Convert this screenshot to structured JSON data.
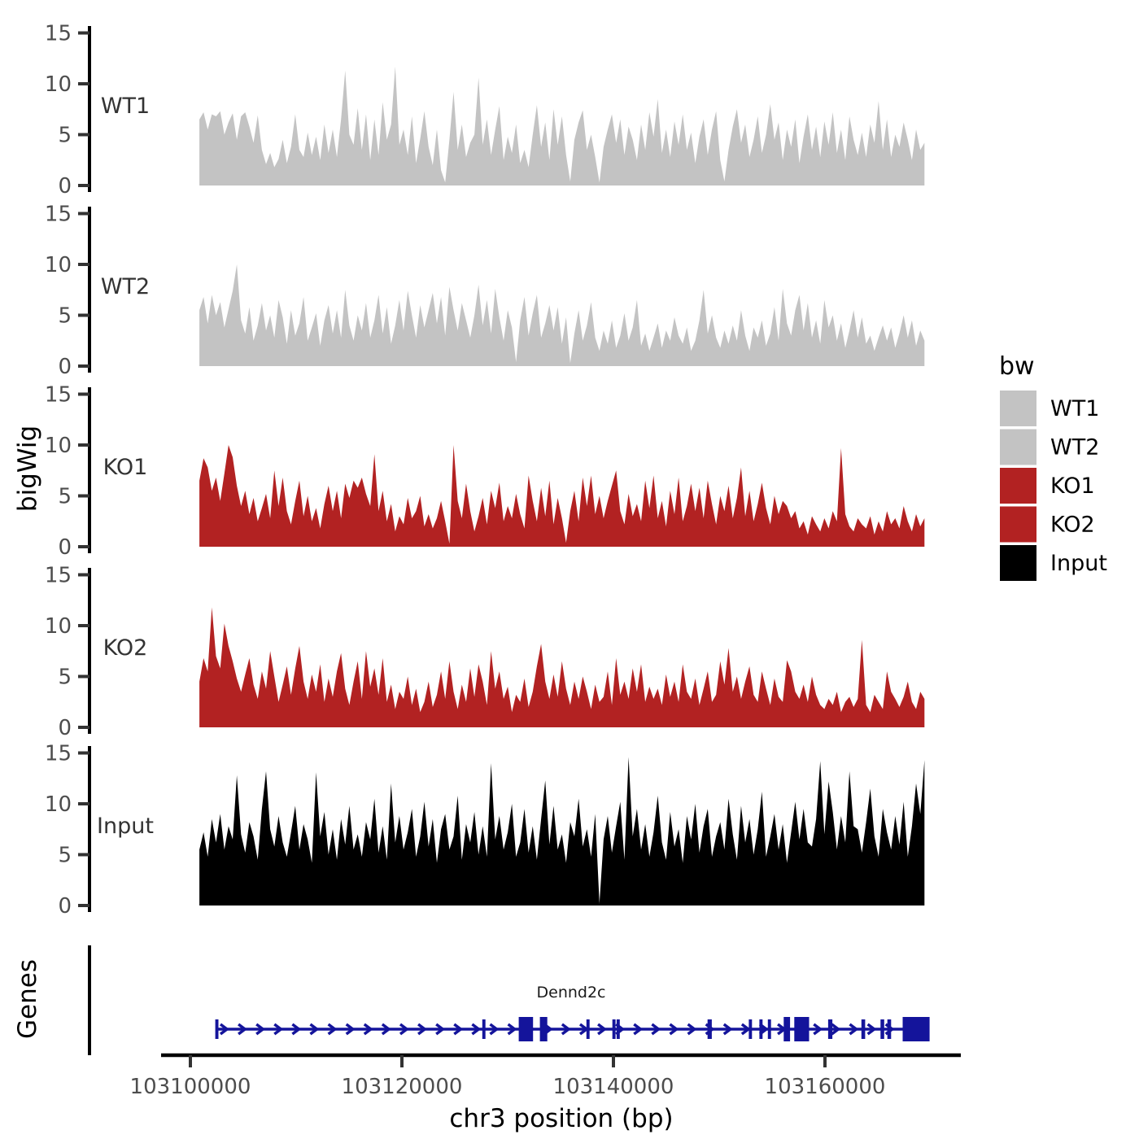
{
  "figure": {
    "background": "#FFFFFF",
    "y_axis_label": "bigWig",
    "genes_axis_label": "Genes",
    "x_axis": {
      "label": "chr3 position (bp)",
      "tick_values": [
        103100000,
        103120000,
        103140000,
        103160000
      ],
      "tick_labels": [
        "103100000",
        "103120000",
        "103140000",
        "103160000"
      ]
    },
    "legend": {
      "title": "bw",
      "entries": [
        {
          "label": "WT1",
          "color": "#C3C3C3"
        },
        {
          "label": "WT2",
          "color": "#C3C3C3"
        },
        {
          "label": "KO1",
          "color": "#B22222"
        },
        {
          "label": "KO2",
          "color": "#B22222"
        },
        {
          "label": "Input",
          "color": "#000000"
        }
      ]
    },
    "colors": {
      "axis": "#000000",
      "tick_text": "#4D4D4D",
      "gene": "#14149B"
    }
  },
  "chart_data": {
    "type": "area",
    "title": "",
    "xlabel": "chr3 position (bp)",
    "ylabel": "bigWig",
    "xlim": [
      103097200,
      103172850
    ],
    "ylim": [
      0,
      15
    ],
    "grid": false,
    "legend_position": "right",
    "y_ticks": [
      0,
      5,
      10,
      15
    ],
    "x_ticks": [
      103100000,
      103120000,
      103140000,
      103160000
    ],
    "x_start_bp": 103100850,
    "x_step_bp": 394,
    "series": [
      {
        "name": "WT1",
        "color": "#C3C3C3",
        "values": [
          6.5,
          7.2,
          5.5,
          7.0,
          6.8,
          7.3,
          5.0,
          6.2,
          7.1,
          4.5,
          6.8,
          7.2,
          5.8,
          4.2,
          6.9,
          3.5,
          2.1,
          3.2,
          1.8,
          2.6,
          4.5,
          2.2,
          3.8,
          7.0,
          3.5,
          2.8,
          5.2,
          3.0,
          4.8,
          2.5,
          6.0,
          3.2,
          5.5,
          2.8,
          6.5,
          11.3,
          5.0,
          4.0,
          7.6,
          3.5,
          7.0,
          2.5,
          6.5,
          3.0,
          8.2,
          4.5,
          6.0,
          11.7,
          4.0,
          5.5,
          3.0,
          6.8,
          2.2,
          4.6,
          7.3,
          3.8,
          2.0,
          5.5,
          1.5,
          0.3,
          4.5,
          9.2,
          3.5,
          6.0,
          2.8,
          4.2,
          5.0,
          10.6,
          4.0,
          6.5,
          3.0,
          5.5,
          7.8,
          2.5,
          4.8,
          3.2,
          6.0,
          2.2,
          3.5,
          1.8,
          5.0,
          7.9,
          3.8,
          6.2,
          2.5,
          7.5,
          4.0,
          6.8,
          3.0,
          0.4,
          4.5,
          6.2,
          7.4,
          3.5,
          5.0,
          2.8,
          0.3,
          3.8,
          5.5,
          7.0,
          4.2,
          6.5,
          3.0,
          5.8,
          4.5,
          2.5,
          6.0,
          3.5,
          7.2,
          4.8,
          8.5,
          3.2,
          5.5,
          2.8,
          6.3,
          4.0,
          7.0,
          3.5,
          5.2,
          2.2,
          4.8,
          6.5,
          3.0,
          5.5,
          7.3,
          2.5,
          0.4,
          3.5,
          5.8,
          7.5,
          4.2,
          6.0,
          2.8,
          4.5,
          6.8,
          3.2,
          5.0,
          8.0,
          4.5,
          6.2,
          2.5,
          5.5,
          3.8,
          6.5,
          2.2,
          4.8,
          7.0,
          3.5,
          5.8,
          2.8,
          6.3,
          4.0,
          7.2,
          3.2,
          5.5,
          2.5,
          6.8,
          4.5,
          3.0,
          5.2,
          2.8,
          6.0,
          4.2,
          8.3,
          3.5,
          6.5,
          2.8,
          5.0,
          3.8,
          6.2,
          4.5,
          2.5,
          5.5,
          3.5,
          4.2
        ]
      },
      {
        "name": "WT2",
        "color": "#C3C3C3",
        "values": [
          5.5,
          6.8,
          4.2,
          7.0,
          5.0,
          6.3,
          3.8,
          5.6,
          7.4,
          10.0,
          4.5,
          3.2,
          5.8,
          2.5,
          4.0,
          6.2,
          3.5,
          5.0,
          2.8,
          6.5,
          4.8,
          2.2,
          5.5,
          3.0,
          4.2,
          6.8,
          2.5,
          3.8,
          5.2,
          2.0,
          4.5,
          6.0,
          3.2,
          5.5,
          2.8,
          7.5,
          4.0,
          2.5,
          5.0,
          3.5,
          6.2,
          2.8,
          4.5,
          7.0,
          3.2,
          5.8,
          2.2,
          4.0,
          6.5,
          3.5,
          7.4,
          5.0,
          2.8,
          6.0,
          3.8,
          5.5,
          7.2,
          4.2,
          6.8,
          3.0,
          7.8,
          5.5,
          3.5,
          6.2,
          4.5,
          2.8,
          5.0,
          8.0,
          4.0,
          6.5,
          3.2,
          7.6,
          4.8,
          2.5,
          5.5,
          3.8,
          0.4,
          4.5,
          6.8,
          3.0,
          5.2,
          7.0,
          2.8,
          4.2,
          6.0,
          3.5,
          5.8,
          2.2,
          4.8,
          0.3,
          3.2,
          5.5,
          2.5,
          4.0,
          6.3,
          2.8,
          1.5,
          3.5,
          2.2,
          4.5,
          1.8,
          3.0,
          5.2,
          2.5,
          3.8,
          6.5,
          2.0,
          3.2,
          1.5,
          2.8,
          4.2,
          1.8,
          3.5,
          2.5,
          4.8,
          3.0,
          2.2,
          3.8,
          1.5,
          2.5,
          4.5,
          7.5,
          3.2,
          5.0,
          2.8,
          1.8,
          3.5,
          2.2,
          4.0,
          2.5,
          5.5,
          3.0,
          1.5,
          3.8,
          2.8,
          4.5,
          2.0,
          3.2,
          5.8,
          2.5,
          7.6,
          4.2,
          3.0,
          5.5,
          7.0,
          3.5,
          6.2,
          2.8,
          4.5,
          2.2,
          6.5,
          3.8,
          5.0,
          2.5,
          4.2,
          1.8,
          3.5,
          5.5,
          2.8,
          4.8,
          2.2,
          3.0,
          1.5,
          2.8,
          4.0,
          2.5,
          3.8,
          1.8,
          3.2,
          5.0,
          2.8,
          4.5,
          2.0,
          3.5,
          2.5
        ]
      },
      {
        "name": "KO1",
        "color": "#B22222",
        "values": [
          6.5,
          8.7,
          7.8,
          5.5,
          6.8,
          4.5,
          7.2,
          10.0,
          8.8,
          6.0,
          4.0,
          5.5,
          3.2,
          4.8,
          2.5,
          3.8,
          5.2,
          2.8,
          7.5,
          4.0,
          6.8,
          3.5,
          2.2,
          4.5,
          6.5,
          3.0,
          5.0,
          2.5,
          3.8,
          1.8,
          4.2,
          6.0,
          3.5,
          5.5,
          2.8,
          6.2,
          4.8,
          6.5,
          5.8,
          6.8,
          5.2,
          4.0,
          9.1,
          3.5,
          5.5,
          2.5,
          4.2,
          1.5,
          3.0,
          2.2,
          4.8,
          2.8,
          3.5,
          5.0,
          2.0,
          3.2,
          1.8,
          2.8,
          4.5,
          2.5,
          0.3,
          10.0,
          4.5,
          2.8,
          6.2,
          3.5,
          1.5,
          3.0,
          4.8,
          2.2,
          5.5,
          3.8,
          6.3,
          2.5,
          4.0,
          2.8,
          5.2,
          3.2,
          1.8,
          7.0,
          4.5,
          2.5,
          5.8,
          3.0,
          6.5,
          2.2,
          4.8,
          2.8,
          0.4,
          3.5,
          5.5,
          2.5,
          6.8,
          4.0,
          7.0,
          3.2,
          5.0,
          2.8,
          4.5,
          6.0,
          7.5,
          3.5,
          2.2,
          5.2,
          3.0,
          4.2,
          2.5,
          6.5,
          3.8,
          7.0,
          2.8,
          4.5,
          2.0,
          5.5,
          3.2,
          6.8,
          2.5,
          4.0,
          6.2,
          3.5,
          5.8,
          2.8,
          6.5,
          4.2,
          2.2,
          5.0,
          3.5,
          6.0,
          2.8,
          4.8,
          7.8,
          3.0,
          5.5,
          2.5,
          4.2,
          6.3,
          3.8,
          2.2,
          5.0,
          3.2,
          4.5,
          4.0,
          2.8,
          3.5,
          1.8,
          2.5,
          1.2,
          3.0,
          2.2,
          1.5,
          2.8,
          1.8,
          3.5,
          2.5,
          9.7,
          3.2,
          2.0,
          1.5,
          2.8,
          2.2,
          1.8,
          3.0,
          1.2,
          2.5,
          1.5,
          3.5,
          2.2,
          2.8,
          1.8,
          4.0,
          2.5,
          1.5,
          3.2,
          2.0,
          2.8
        ]
      },
      {
        "name": "KO2",
        "color": "#B22222",
        "values": [
          4.5,
          6.8,
          5.5,
          11.8,
          7.0,
          5.8,
          10.2,
          8.0,
          6.5,
          4.8,
          3.5,
          5.2,
          6.8,
          4.2,
          2.8,
          5.5,
          3.8,
          7.5,
          5.0,
          2.5,
          4.2,
          6.0,
          3.2,
          5.8,
          8.0,
          4.5,
          2.8,
          5.2,
          3.5,
          6.2,
          2.5,
          4.8,
          3.0,
          5.5,
          7.3,
          3.8,
          2.2,
          4.5,
          6.5,
          2.8,
          7.5,
          4.0,
          5.8,
          3.2,
          6.8,
          2.5,
          4.2,
          1.8,
          3.5,
          2.8,
          5.0,
          2.2,
          3.8,
          1.5,
          2.5,
          4.5,
          2.0,
          3.2,
          5.5,
          2.8,
          6.5,
          3.5,
          1.8,
          4.2,
          2.5,
          5.8,
          3.0,
          6.2,
          4.5,
          2.2,
          7.5,
          3.8,
          5.5,
          2.8,
          4.0,
          1.5,
          3.2,
          2.5,
          4.8,
          2.0,
          3.5,
          6.0,
          8.2,
          4.5,
          2.8,
          5.2,
          3.0,
          6.5,
          3.8,
          2.2,
          4.5,
          2.8,
          5.0,
          3.5,
          1.8,
          4.2,
          2.5,
          3.0,
          5.5,
          2.2,
          6.8,
          3.2,
          4.5,
          2.8,
          5.8,
          3.5,
          6.2,
          2.5,
          4.0,
          2.8,
          3.8,
          2.2,
          5.2,
          3.0,
          4.5,
          2.5,
          6.2,
          3.5,
          2.8,
          4.8,
          2.2,
          3.8,
          5.5,
          2.5,
          3.2,
          6.5,
          4.2,
          7.8,
          3.5,
          5.0,
          2.8,
          4.5,
          6.0,
          3.2,
          2.5,
          5.5,
          3.8,
          2.2,
          4.8,
          3.0,
          2.5,
          6.6,
          5.5,
          3.5,
          2.8,
          4.2,
          2.5,
          5.0,
          3.2,
          2.2,
          1.8,
          2.8,
          2.2,
          3.5,
          1.5,
          2.5,
          3.0,
          2.0,
          2.8,
          8.6,
          2.2,
          1.5,
          3.2,
          2.5,
          1.8,
          5.5,
          3.5,
          2.8,
          2.0,
          3.0,
          4.5,
          2.5,
          1.8,
          3.5,
          2.8
        ]
      },
      {
        "name": "Input",
        "color": "#000000",
        "values": [
          5.5,
          7.2,
          4.8,
          8.5,
          6.2,
          9.0,
          5.5,
          7.8,
          6.5,
          12.8,
          7.0,
          5.2,
          8.2,
          6.8,
          4.5,
          9.5,
          13.2,
          7.5,
          5.8,
          8.8,
          6.2,
          4.8,
          7.2,
          9.8,
          5.5,
          8.0,
          6.5,
          4.2,
          13.1,
          6.8,
          9.2,
          5.0,
          7.5,
          4.5,
          8.5,
          6.0,
          9.8,
          5.5,
          7.0,
          4.8,
          8.2,
          6.5,
          10.5,
          5.2,
          7.8,
          4.5,
          12.0,
          6.2,
          8.8,
          5.5,
          7.2,
          9.5,
          4.8,
          6.8,
          10.2,
          5.8,
          8.5,
          4.2,
          7.5,
          9.0,
          5.5,
          6.8,
          10.8,
          4.5,
          8.0,
          6.2,
          9.2,
          5.0,
          7.8,
          4.8,
          14.0,
          6.5,
          8.8,
          5.5,
          7.2,
          10.0,
          4.8,
          6.2,
          9.5,
          5.2,
          7.8,
          4.5,
          8.5,
          12.3,
          6.0,
          9.8,
          5.5,
          7.0,
          4.2,
          8.2,
          6.8,
          10.5,
          5.8,
          7.5,
          4.8,
          9.0,
          0.2,
          6.5,
          8.8,
          5.2,
          7.8,
          10.2,
          4.5,
          14.6,
          6.8,
          9.5,
          5.5,
          8.0,
          4.8,
          7.2,
          10.8,
          6.2,
          4.5,
          9.2,
          5.8,
          7.5,
          4.2,
          8.8,
          6.5,
          10.0,
          5.2,
          7.8,
          9.5,
          4.8,
          6.8,
          8.2,
          5.5,
          10.5,
          7.0,
          4.5,
          9.8,
          6.2,
          8.5,
          5.0,
          7.5,
          11.2,
          4.8,
          6.8,
          9.0,
          5.5,
          8.0,
          4.2,
          7.2,
          10.2,
          6.5,
          9.5,
          6.2,
          5.8,
          8.5,
          14.2,
          7.0,
          12.2,
          9.2,
          5.5,
          8.8,
          6.2,
          13.2,
          7.8,
          7.5,
          5.2,
          8.2,
          11.5,
          6.8,
          4.8,
          9.5,
          7.2,
          5.5,
          8.8,
          6.0,
          10.2,
          4.8,
          7.8,
          12.0,
          9.0,
          14.3
        ]
      }
    ],
    "gene_track": {
      "name": "Dennd2c",
      "strand": "+",
      "start_bp": 103102460,
      "end_bp": 103169850,
      "label_center_bp": 103136000,
      "exons": [
        [
          103102350,
          103102650
        ],
        [
          103127600,
          103127900
        ],
        [
          103131050,
          103132400
        ],
        [
          103133050,
          103133750
        ],
        [
          103137450,
          103137750
        ],
        [
          103139900,
          103140200
        ],
        [
          103140300,
          103140600
        ],
        [
          103148900,
          103149300
        ],
        [
          103152800,
          103153100
        ],
        [
          103153800,
          103154100
        ],
        [
          103154600,
          103154900
        ],
        [
          103156100,
          103156700
        ],
        [
          103157100,
          103158500
        ],
        [
          103160300,
          103160700
        ],
        [
          103163450,
          103163800
        ],
        [
          103165250,
          103165600
        ],
        [
          103165900,
          103166250
        ],
        [
          103167350,
          103169900
        ]
      ]
    }
  }
}
